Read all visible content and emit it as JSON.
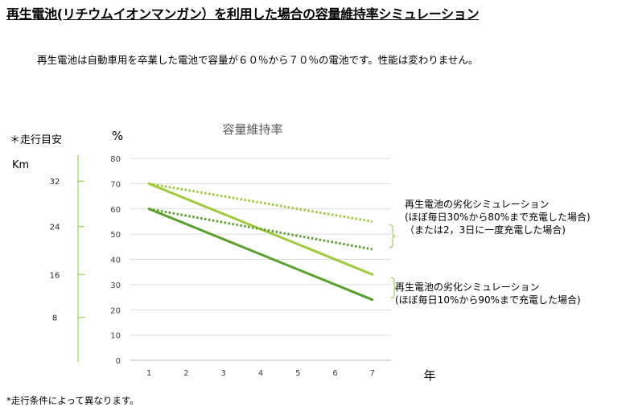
{
  "title": "再生電池(リチウムイオンマンガン）を利用した場合の容量維持率シミュレーション",
  "subtitle": "再生電池は自動車用を卒業した電池で容量が６０％から７０％の電池です。性能は変わりません。",
  "footnote": "*走行条件によって異なります。",
  "colors": {
    "dark_green": "#5aa02c",
    "light_green": "#9fcb3b",
    "axis": "#bdbdbd",
    "grid": "#dcdcdc",
    "km_axis": "#8dc63f"
  },
  "chart_data": {
    "type": "line",
    "title": "容量維持率",
    "ylabel": "%",
    "xlabel": "年",
    "x": [
      1,
      2,
      3,
      4,
      5,
      6,
      7
    ],
    "ylim": [
      0,
      80
    ],
    "yticks": [
      0,
      10,
      20,
      30,
      40,
      50,
      60,
      70,
      80
    ],
    "grid": true,
    "secondary_axis": {
      "label": "＊走行目安",
      "unit": "Km",
      "ticks": [
        {
          "km": 32,
          "at_percent": 71
        },
        {
          "km": 24,
          "at_percent": 53
        },
        {
          "km": 16,
          "at_percent": 34
        },
        {
          "km": 8,
          "at_percent": 17
        }
      ]
    },
    "series": [
      {
        "start_percent": 70,
        "x": [
          1,
          7
        ],
        "y": [
          70,
          34
        ],
        "style": "solid",
        "color": "light_green"
      },
      {
        "start_percent": 60,
        "x": [
          1,
          7
        ],
        "y": [
          60,
          24
        ],
        "style": "solid",
        "color": "dark_green"
      },
      {
        "start_percent": 70,
        "x": [
          1,
          7
        ],
        "y": [
          70,
          55
        ],
        "style": "dotted",
        "color": "light_green"
      },
      {
        "start_percent": 60,
        "x": [
          1,
          7
        ],
        "y": [
          60,
          44
        ],
        "style": "dotted",
        "color": "dark_green"
      }
    ],
    "annotations": [
      {
        "lines": [
          "再生電池の劣化シミュレーション",
          "(ほぼ毎日30%から80%まで充電した場合)",
          "（または2，3日に一度充電した場合)"
        ],
        "y_range": [
          44,
          55
        ]
      },
      {
        "lines": [
          "再生電池の劣化シミュレーション",
          "(ほぼ毎日10%から90%まで充電した場合)"
        ],
        "y_range": [
          24,
          34
        ]
      }
    ]
  }
}
